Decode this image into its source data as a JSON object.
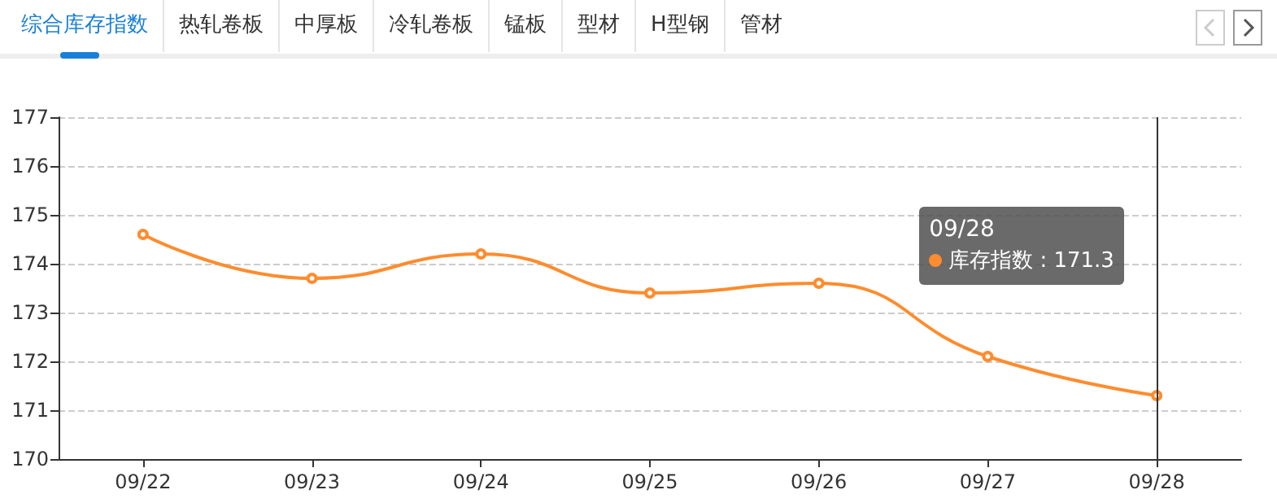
{
  "chart_data": {
    "type": "line",
    "categories": [
      "09/22",
      "09/23",
      "09/24",
      "09/25",
      "09/26",
      "09/27",
      "09/28"
    ],
    "series": [
      {
        "name": "库存指数",
        "color": "#ff8c2e",
        "values": [
          174.6,
          173.7,
          174.2,
          173.4,
          173.6,
          172.1,
          171.3
        ]
      }
    ],
    "ylim": [
      170,
      177
    ],
    "yticks": [
      170,
      171,
      172,
      173,
      174,
      175,
      176,
      177
    ],
    "grid": "y",
    "legend": "top right",
    "marker": "circle",
    "line_style": "solid",
    "ref_lines": [
      {
        "axis": "x",
        "value": "09/28",
        "color": "#333333",
        "line_style": "solid"
      }
    ],
    "annotations": [
      "综合库存指数",
      "热轧卷板",
      "中厚板",
      "冷轧卷板",
      "锰板",
      "型材",
      "H型钢",
      "管材",
      "09/28",
      ": 171.3"
    ]
  }
}
